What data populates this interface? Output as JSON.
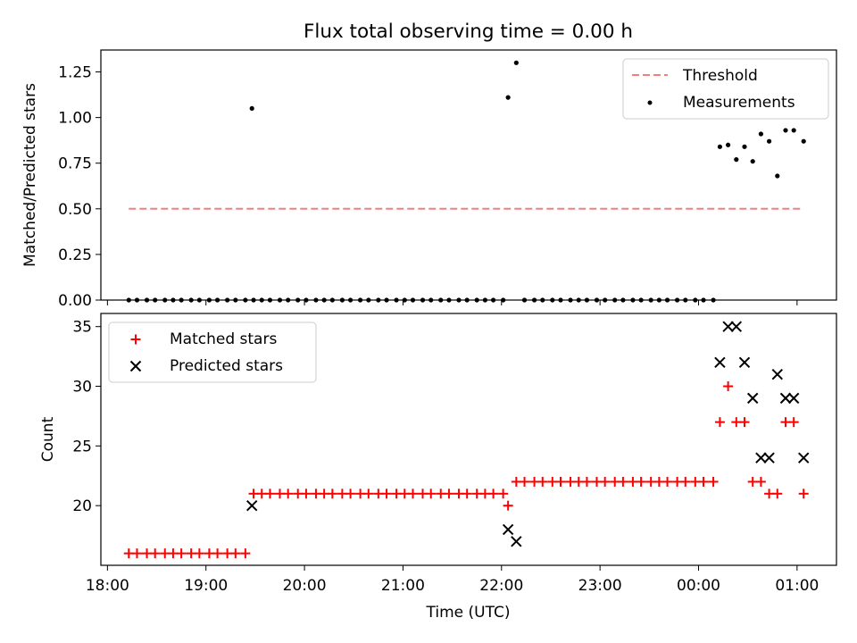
{
  "title": "Flux total observing time = 0.00 h",
  "chart_data": [
    {
      "type": "scatter",
      "panel": "top",
      "ylabel": "Matched/Predicted stars",
      "ylim": [
        0,
        1.37
      ],
      "yticks": [
        "0.00",
        "0.25",
        "0.50",
        "0.75",
        "1.00",
        "1.25"
      ],
      "ytick_values": [
        0,
        0.25,
        0.5,
        0.75,
        1.0,
        1.25
      ],
      "legend_position": "upper right",
      "legend": [
        "Threshold",
        "Measurements"
      ],
      "threshold": {
        "name": "Threshold",
        "value": 0.5,
        "x_start": "18:13",
        "x_end": "01:04",
        "color": "#f08080"
      },
      "measurements": {
        "name": "Measurements",
        "color": "#000000",
        "points": [
          [
            "18:13",
            0
          ],
          [
            "18:18",
            0
          ],
          [
            "18:24",
            0
          ],
          [
            "18:29",
            0
          ],
          [
            "18:35",
            0
          ],
          [
            "18:40",
            0
          ],
          [
            "18:45",
            0
          ],
          [
            "18:51",
            0
          ],
          [
            "18:56",
            0
          ],
          [
            "19:02",
            0
          ],
          [
            "19:07",
            0
          ],
          [
            "19:13",
            0
          ],
          [
            "19:18",
            0
          ],
          [
            "19:24",
            0
          ],
          [
            "19:29",
            0
          ],
          [
            "19:28",
            1.05
          ],
          [
            "19:34",
            0
          ],
          [
            "19:39",
            0
          ],
          [
            "19:45",
            0
          ],
          [
            "19:50",
            0
          ],
          [
            "19:56",
            0
          ],
          [
            "20:01",
            0
          ],
          [
            "20:07",
            0
          ],
          [
            "20:12",
            0
          ],
          [
            "20:17",
            0
          ],
          [
            "20:23",
            0
          ],
          [
            "20:28",
            0
          ],
          [
            "20:34",
            0
          ],
          [
            "20:39",
            0
          ],
          [
            "20:45",
            0
          ],
          [
            "20:50",
            0
          ],
          [
            "20:56",
            0
          ],
          [
            "21:01",
            0
          ],
          [
            "21:06",
            0
          ],
          [
            "21:12",
            0
          ],
          [
            "21:17",
            0
          ],
          [
            "21:23",
            0
          ],
          [
            "21:28",
            0
          ],
          [
            "21:34",
            0
          ],
          [
            "21:39",
            0
          ],
          [
            "21:45",
            0
          ],
          [
            "21:50",
            0
          ],
          [
            "21:55",
            0
          ],
          [
            "22:01",
            0
          ],
          [
            "22:04",
            1.11
          ],
          [
            "22:09",
            1.3
          ],
          [
            "22:14",
            0
          ],
          [
            "22:20",
            0
          ],
          [
            "22:25",
            0
          ],
          [
            "22:31",
            0
          ],
          [
            "22:36",
            0
          ],
          [
            "22:42",
            0
          ],
          [
            "22:47",
            0
          ],
          [
            "22:52",
            0
          ],
          [
            "22:58",
            0
          ],
          [
            "23:03",
            0
          ],
          [
            "23:09",
            0
          ],
          [
            "23:14",
            0
          ],
          [
            "23:20",
            0
          ],
          [
            "23:25",
            0
          ],
          [
            "23:31",
            0
          ],
          [
            "23:36",
            0
          ],
          [
            "23:41",
            0
          ],
          [
            "23:47",
            0
          ],
          [
            "23:52",
            0
          ],
          [
            "23:58",
            0
          ],
          [
            "00:03",
            0
          ],
          [
            "00:09",
            0
          ],
          [
            "00:13",
            0.84
          ],
          [
            "00:18",
            0.85
          ],
          [
            "00:23",
            0.77
          ],
          [
            "00:28",
            0.84
          ],
          [
            "00:33",
            0.76
          ],
          [
            "00:38",
            0.91
          ],
          [
            "00:43",
            0.87
          ],
          [
            "00:48",
            0.68
          ],
          [
            "00:53",
            0.93
          ],
          [
            "00:58",
            0.93
          ],
          [
            "01:04",
            0.87
          ]
        ]
      }
    },
    {
      "type": "scatter",
      "panel": "bottom",
      "xlabel": "Time (UTC)",
      "ylabel": "Count",
      "xlim": [
        "17:56",
        "01:24"
      ],
      "xticks": [
        "18:00",
        "19:00",
        "20:00",
        "21:00",
        "22:00",
        "23:00",
        "00:00",
        "01:00"
      ],
      "ylim": [
        15,
        36.1
      ],
      "yticks": [
        "20",
        "25",
        "30",
        "35"
      ],
      "ytick_values": [
        20,
        25,
        30,
        35
      ],
      "legend_position": "upper left",
      "legend": [
        "Matched stars",
        "Predicted stars"
      ],
      "series": [
        {
          "name": "Matched stars",
          "marker": "plus",
          "color": "#ff0000",
          "points": [
            [
              "18:13",
              16
            ],
            [
              "18:18",
              16
            ],
            [
              "18:24",
              16
            ],
            [
              "18:29",
              16
            ],
            [
              "18:35",
              16
            ],
            [
              "18:40",
              16
            ],
            [
              "18:45",
              16
            ],
            [
              "18:51",
              16
            ],
            [
              "18:56",
              16
            ],
            [
              "19:02",
              16
            ],
            [
              "19:07",
              16
            ],
            [
              "19:13",
              16
            ],
            [
              "19:18",
              16
            ],
            [
              "19:24",
              16
            ],
            [
              "19:29",
              21
            ],
            [
              "19:34",
              21
            ],
            [
              "19:39",
              21
            ],
            [
              "19:45",
              21
            ],
            [
              "19:50",
              21
            ],
            [
              "19:56",
              21
            ],
            [
              "20:01",
              21
            ],
            [
              "20:07",
              21
            ],
            [
              "20:12",
              21
            ],
            [
              "20:17",
              21
            ],
            [
              "20:23",
              21
            ],
            [
              "20:28",
              21
            ],
            [
              "20:34",
              21
            ],
            [
              "20:39",
              21
            ],
            [
              "20:45",
              21
            ],
            [
              "20:50",
              21
            ],
            [
              "20:56",
              21
            ],
            [
              "21:01",
              21
            ],
            [
              "21:06",
              21
            ],
            [
              "21:12",
              21
            ],
            [
              "21:17",
              21
            ],
            [
              "21:23",
              21
            ],
            [
              "21:28",
              21
            ],
            [
              "21:34",
              21
            ],
            [
              "21:39",
              21
            ],
            [
              "21:45",
              21
            ],
            [
              "21:50",
              21
            ],
            [
              "21:55",
              21
            ],
            [
              "22:01",
              21
            ],
            [
              "22:04",
              20
            ],
            [
              "22:09",
              22
            ],
            [
              "22:14",
              22
            ],
            [
              "22:20",
              22
            ],
            [
              "22:25",
              22
            ],
            [
              "22:31",
              22
            ],
            [
              "22:36",
              22
            ],
            [
              "22:42",
              22
            ],
            [
              "22:47",
              22
            ],
            [
              "22:52",
              22
            ],
            [
              "22:58",
              22
            ],
            [
              "23:03",
              22
            ],
            [
              "23:09",
              22
            ],
            [
              "23:14",
              22
            ],
            [
              "23:20",
              22
            ],
            [
              "23:25",
              22
            ],
            [
              "23:31",
              22
            ],
            [
              "23:36",
              22
            ],
            [
              "23:41",
              22
            ],
            [
              "23:47",
              22
            ],
            [
              "23:52",
              22
            ],
            [
              "23:58",
              22
            ],
            [
              "00:03",
              22
            ],
            [
              "00:09",
              22
            ],
            [
              "00:13",
              27
            ],
            [
              "00:18",
              30
            ],
            [
              "00:23",
              27
            ],
            [
              "00:28",
              27
            ],
            [
              "00:33",
              22
            ],
            [
              "00:38",
              22
            ],
            [
              "00:43",
              21
            ],
            [
              "00:48",
              21
            ],
            [
              "00:53",
              27
            ],
            [
              "00:58",
              27
            ],
            [
              "01:04",
              21
            ]
          ]
        },
        {
          "name": "Predicted stars",
          "marker": "x",
          "color": "#000000",
          "points": [
            [
              "19:28",
              20
            ],
            [
              "22:04",
              18
            ],
            [
              "22:09",
              17
            ],
            [
              "00:13",
              32
            ],
            [
              "00:18",
              35
            ],
            [
              "00:23",
              35
            ],
            [
              "00:28",
              32
            ],
            [
              "00:33",
              29
            ],
            [
              "00:38",
              24
            ],
            [
              "00:43",
              24
            ],
            [
              "00:48",
              31
            ],
            [
              "00:53",
              29
            ],
            [
              "00:58",
              29
            ],
            [
              "01:04",
              24
            ]
          ]
        }
      ]
    }
  ]
}
